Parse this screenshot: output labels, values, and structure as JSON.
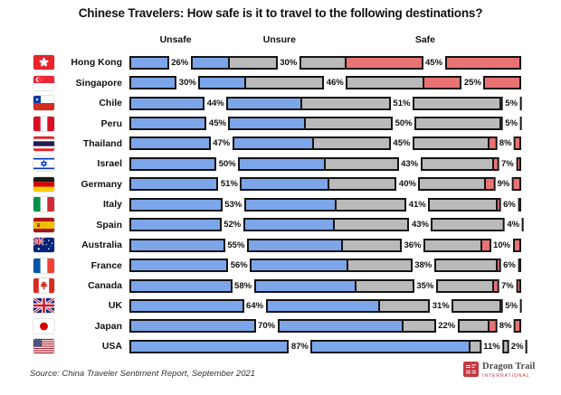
{
  "title": "Chinese Travelers: How safe is it to travel to the following destinations?",
  "column_headers": [
    "Unsafe",
    "Unsure",
    "Safe"
  ],
  "source_note": "Source: China Traveler Sentiment Report, September 2021",
  "logo": {
    "brand": "Dragon Trail",
    "subtitle": "INTERNATIONAL"
  },
  "colors": {
    "unsafe": "#7CA6E9",
    "unsure": "#BABABA",
    "safe": "#E97373",
    "outline": "#141414",
    "logo_red": "#C5383E"
  },
  "value_suffix": "%",
  "chart_data": {
    "type": "bar",
    "stacked": true,
    "orientation": "horizontal",
    "title": "Chinese Travelers: How safe is it to travel to the following destinations?",
    "series_labels": [
      "Unsafe",
      "Unsure",
      "Safe"
    ],
    "unit": "percent",
    "xlim": [
      0,
      100
    ],
    "grid": false,
    "legend_position": "top",
    "rows": [
      {
        "country": "Hong Kong",
        "flag": "hong-kong",
        "unsafe": 26,
        "unsure": 30,
        "safe": 45
      },
      {
        "country": "Singapore",
        "flag": "singapore",
        "unsafe": 30,
        "unsure": 46,
        "safe": 25
      },
      {
        "country": "Chile",
        "flag": "chile",
        "unsafe": 44,
        "unsure": 51,
        "safe": 5
      },
      {
        "country": "Peru",
        "flag": "peru",
        "unsafe": 45,
        "unsure": 50,
        "safe": 5
      },
      {
        "country": "Thailand",
        "flag": "thailand",
        "unsafe": 47,
        "unsure": 45,
        "safe": 8
      },
      {
        "country": "Israel",
        "flag": "israel",
        "unsafe": 50,
        "unsure": 43,
        "safe": 7
      },
      {
        "country": "Germany",
        "flag": "germany",
        "unsafe": 51,
        "unsure": 40,
        "safe": 9
      },
      {
        "country": "Italy",
        "flag": "italy",
        "unsafe": 53,
        "unsure": 41,
        "safe": 6
      },
      {
        "country": "Spain",
        "flag": "spain",
        "unsafe": 52,
        "unsure": 43,
        "safe": 4
      },
      {
        "country": "Australia",
        "flag": "australia",
        "unsafe": 55,
        "unsure": 36,
        "safe": 10
      },
      {
        "country": "France",
        "flag": "france",
        "unsafe": 56,
        "unsure": 38,
        "safe": 6
      },
      {
        "country": "Canada",
        "flag": "canada",
        "unsafe": 58,
        "unsure": 35,
        "safe": 7
      },
      {
        "country": "UK",
        "flag": "uk",
        "unsafe": 64,
        "unsure": 31,
        "safe": 5
      },
      {
        "country": "Japan",
        "flag": "japan",
        "unsafe": 70,
        "unsure": 22,
        "safe": 8
      },
      {
        "country": "USA",
        "flag": "usa",
        "unsafe": 87,
        "unsure": 11,
        "safe": 2
      }
    ]
  }
}
